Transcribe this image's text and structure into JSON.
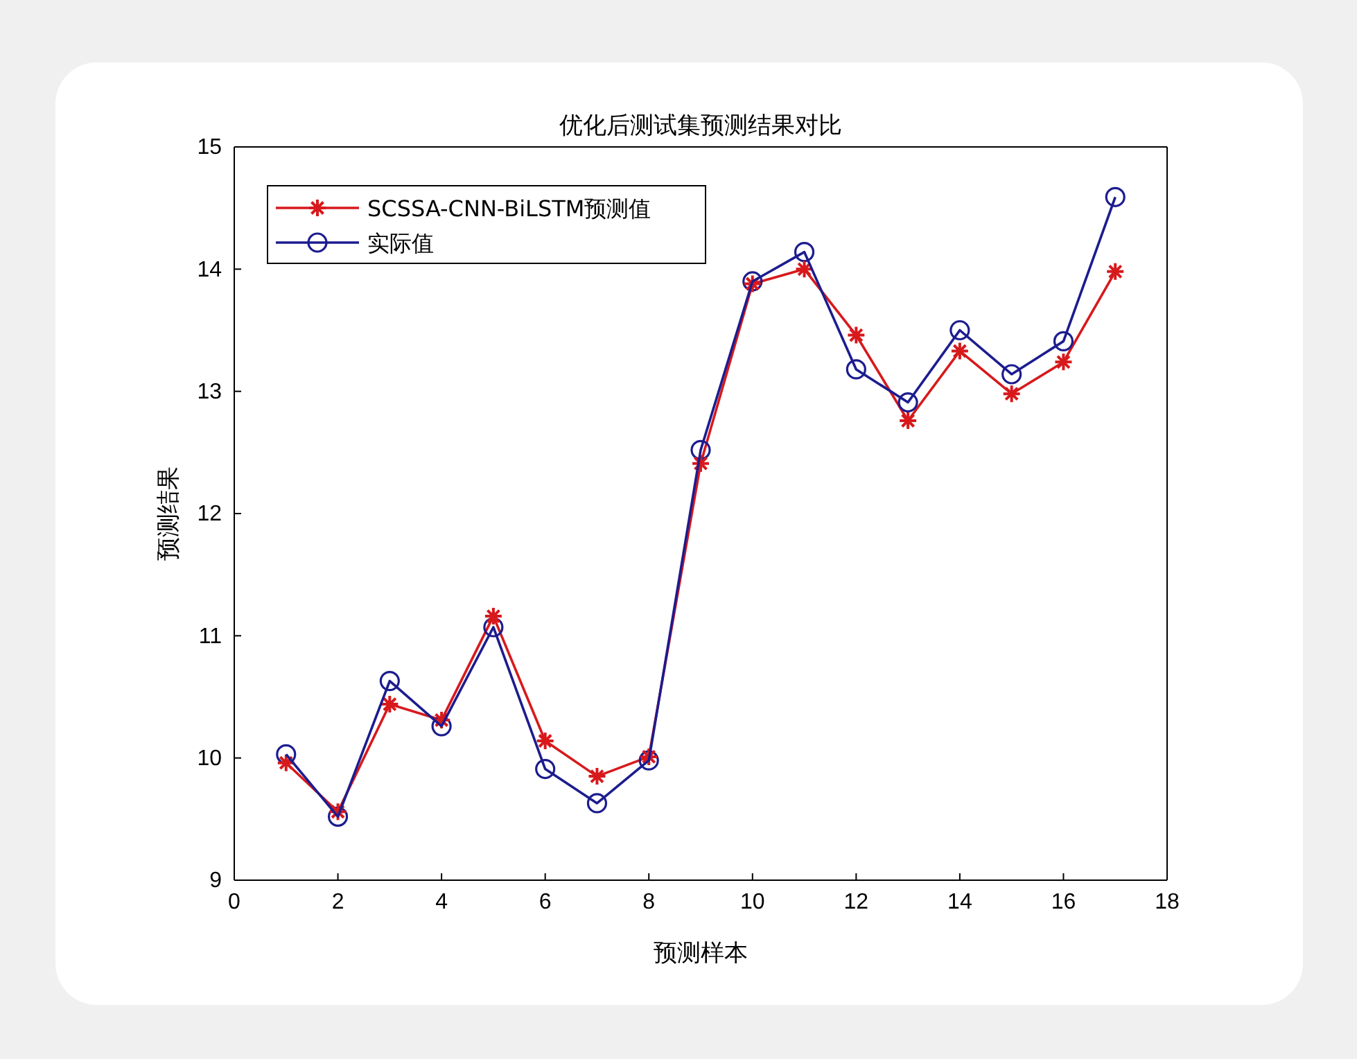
{
  "chart_data": {
    "type": "line",
    "title": "优化后测试集预测结果对比",
    "xlabel": "预测样本",
    "ylabel": "预测结果",
    "x": [
      1,
      2,
      3,
      4,
      5,
      6,
      7,
      8,
      9,
      10,
      11,
      12,
      13,
      14,
      15,
      16,
      17
    ],
    "series": [
      {
        "name": "SCSSA-CNN-BiLSTM预测值",
        "color": "#d7191c",
        "marker": "cross",
        "values": [
          9.96,
          9.56,
          10.44,
          10.31,
          11.16,
          10.14,
          9.85,
          10.01,
          12.41,
          13.88,
          14.0,
          13.46,
          12.76,
          13.33,
          12.98,
          13.24,
          13.98
        ]
      },
      {
        "name": "实际值",
        "color": "#1c1c8f",
        "marker": "circle",
        "values": [
          10.03,
          9.52,
          10.63,
          10.26,
          11.07,
          9.91,
          9.63,
          9.98,
          12.52,
          13.9,
          14.14,
          13.18,
          12.91,
          13.5,
          13.14,
          13.41,
          14.59
        ]
      }
    ],
    "xlim": [
      0,
      18
    ],
    "xticks": [
      0,
      2,
      4,
      6,
      8,
      10,
      12,
      14,
      16,
      18
    ],
    "ylim": [
      9,
      15
    ],
    "yticks": [
      9,
      10,
      11,
      12,
      13,
      14,
      15
    ],
    "grid": false,
    "legend": "top left",
    "line_style": "solid"
  }
}
